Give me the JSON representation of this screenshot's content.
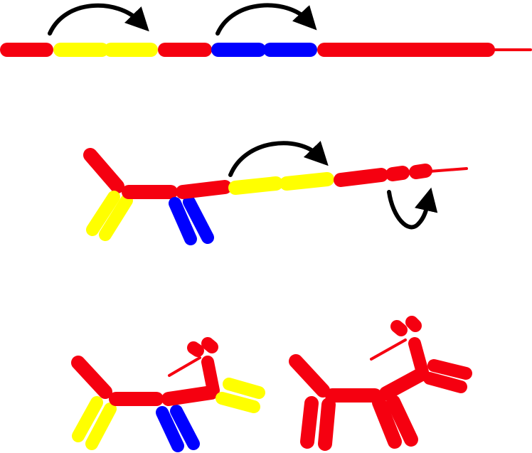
{
  "colors": {
    "red": "#f50010",
    "yellow": "#ffff00",
    "blue": "#0000ff",
    "arrow": "#000000",
    "background": "#ffffff"
  },
  "steps": [
    {
      "name": "straight-balloon",
      "sequence": [
        "red",
        "yellow",
        "yellow",
        "red",
        "blue",
        "blue",
        "red-long",
        "red-tail"
      ],
      "twists": [
        "arrow",
        "arrow"
      ]
    },
    {
      "name": "partially-twisted-balloon",
      "twists": [
        "arrow",
        "curl-arrow"
      ]
    },
    {
      "name": "finished-dogs",
      "variants": [
        "multicolor-dog",
        "red-dog"
      ]
    }
  ]
}
